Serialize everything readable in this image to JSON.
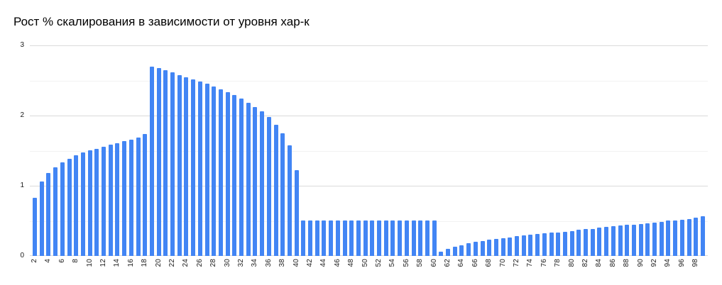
{
  "page": {
    "background": "#ffffff"
  },
  "chart_data": {
    "type": "bar",
    "title": "Рост % скалирования в зависимости от уровня хар-к",
    "xlabel": "",
    "ylabel": "",
    "legend": "none",
    "grid": "horizontal",
    "ylim": [
      0,
      3
    ],
    "yticks": [
      0,
      1,
      2,
      3
    ],
    "minor_ytick_interval": 0.5,
    "x_label_every": 2,
    "bar_color": "#4285f4",
    "title_color": "#000000",
    "axis_label_color": "#1a1a1a",
    "major_gridline_color": "#dadada",
    "minor_gridline_color": "#f2f2f2",
    "categories": [
      2,
      3,
      4,
      5,
      6,
      7,
      8,
      9,
      10,
      11,
      12,
      13,
      14,
      15,
      16,
      17,
      18,
      19,
      20,
      21,
      22,
      23,
      24,
      25,
      26,
      27,
      28,
      29,
      30,
      31,
      32,
      33,
      34,
      35,
      36,
      37,
      38,
      39,
      40,
      41,
      42,
      43,
      44,
      45,
      46,
      47,
      48,
      49,
      50,
      51,
      52,
      53,
      54,
      55,
      56,
      57,
      58,
      59,
      60,
      61,
      62,
      63,
      64,
      65,
      66,
      67,
      68,
      69,
      70,
      71,
      72,
      73,
      74,
      75,
      76,
      77,
      78,
      79,
      80,
      81,
      82,
      83,
      84,
      85,
      86,
      87,
      88,
      89,
      90,
      91,
      92,
      93,
      94,
      95,
      96,
      97,
      98,
      99
    ],
    "values": [
      0.83,
      1.06,
      1.18,
      1.26,
      1.33,
      1.38,
      1.43,
      1.47,
      1.5,
      1.53,
      1.56,
      1.59,
      1.61,
      1.64,
      1.66,
      1.69,
      1.74,
      2.7,
      2.68,
      2.65,
      2.62,
      2.58,
      2.55,
      2.52,
      2.48,
      2.45,
      2.41,
      2.37,
      2.33,
      2.29,
      2.24,
      2.18,
      2.12,
      2.06,
      1.98,
      1.87,
      1.75,
      1.58,
      1.22,
      0.5,
      0.5,
      0.5,
      0.5,
      0.5,
      0.5,
      0.5,
      0.5,
      0.5,
      0.5,
      0.5,
      0.5,
      0.5,
      0.5,
      0.5,
      0.5,
      0.5,
      0.5,
      0.5,
      0.5,
      0.06,
      0.1,
      0.13,
      0.15,
      0.18,
      0.2,
      0.21,
      0.23,
      0.24,
      0.25,
      0.26,
      0.28,
      0.29,
      0.3,
      0.31,
      0.32,
      0.33,
      0.33,
      0.34,
      0.35,
      0.37,
      0.38,
      0.38,
      0.4,
      0.41,
      0.42,
      0.43,
      0.44,
      0.44,
      0.45,
      0.46,
      0.47,
      0.48,
      0.5,
      0.51,
      0.52,
      0.53,
      0.55,
      0.57
    ]
  }
}
